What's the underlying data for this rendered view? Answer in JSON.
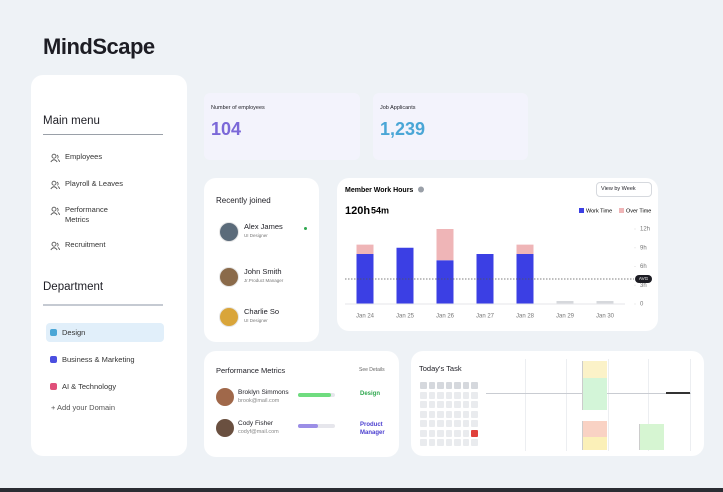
{
  "header": {
    "title": "MindScape"
  },
  "sidebar": {
    "main_menu": {
      "title": "Main menu",
      "items": [
        "Employees",
        "Playroll & Leaves",
        "Performance Metrics",
        "Recruitment"
      ]
    },
    "department": {
      "title": "Department",
      "items": [
        {
          "label": "Design",
          "color": "#4aa6d6"
        },
        {
          "label": "Business & Marketing",
          "color": "#4b4fe0"
        },
        {
          "label": "AI & Technology",
          "color": "#e0507a"
        }
      ],
      "add": "+ Add your Domain"
    }
  },
  "stats": [
    {
      "label": "Number of employees",
      "value": "104",
      "color": "#7b68d8"
    },
    {
      "label": "Job Applicants",
      "value": "1,239",
      "color": "#4aa6d6"
    }
  ],
  "recently_joined": {
    "title": "Recently joined",
    "people": [
      {
        "name": "Alex James",
        "role": "UI Designer"
      },
      {
        "name": "John Smith",
        "role": "Jr.Product Manager"
      },
      {
        "name": "Charlie So",
        "role": "UI Designer"
      }
    ]
  },
  "chart_data": {
    "type": "bar",
    "stacked": true,
    "title": "Member Work Hours",
    "control": "View by Week",
    "summary_hours": "120h",
    "summary_minutes": "54m",
    "categories": [
      "Jan 24",
      "Jan 25",
      "Jan 26",
      "Jan 27",
      "Jan 28",
      "Jan 29",
      "Jan 30"
    ],
    "series": [
      {
        "name": "Work Time",
        "color": "#3b3fe4",
        "values": [
          8,
          9,
          7,
          8,
          8,
          null,
          null
        ]
      },
      {
        "name": "Over Time",
        "color": "#efb5b7",
        "values": [
          1.5,
          0,
          5,
          0,
          1.5,
          null,
          null
        ]
      }
    ],
    "ylim": [
      0,
      12
    ],
    "yticks": [
      0,
      {
        "value": 3,
        "label": "3h"
      },
      {
        "value": 6,
        "label": "6h"
      },
      {
        "value": 9,
        "label": "9h"
      },
      {
        "value": 12,
        "label": "12h"
      }
    ],
    "avg": {
      "value": 4,
      "label": "AVG"
    },
    "grid": false,
    "legend": "top-right"
  },
  "performance": {
    "title": "Performance Metrics",
    "link": "See Details",
    "rows": [
      {
        "name": "Broklyn Simmons",
        "email": "brook@mail.com",
        "progress": 90,
        "color": "#6fdc7f",
        "team": "Design",
        "team_color": "#2fa84f"
      },
      {
        "name": "Cody Fisher",
        "email": "codyf@mail.com",
        "progress": 55,
        "color": "#9b8ee6",
        "team": "Product Manager",
        "team_color": "#4b3fd0"
      }
    ]
  },
  "tasks": {
    "title": "Today's Task"
  }
}
